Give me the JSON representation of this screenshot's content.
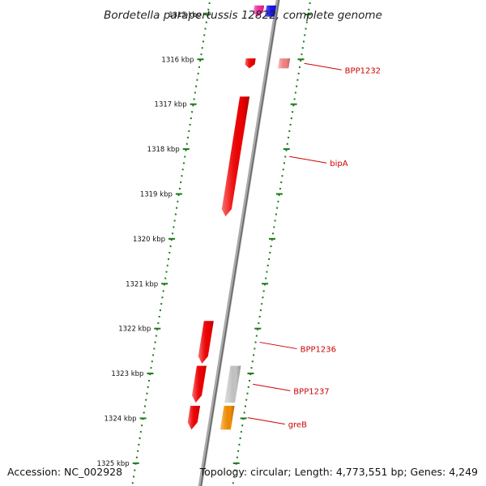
{
  "title": "Bordetella parapertussis 12822, complete genome",
  "footer": {
    "accession": "Accession: NC_002928",
    "summary": "Topology: circular; Length: 4,773,551 bp; Genes: 4,249"
  },
  "colors": {
    "backbone": "#888888",
    "tick": "#1a7a1a",
    "label": "#cc0000",
    "red": "#ee0000",
    "pink": "#ee2a9a",
    "blue": "#1515ee",
    "salmon": "#f08080",
    "gray": "#c4c4c4",
    "orange": "#f08c00"
  },
  "scale": {
    "start_kbp": 1314.84,
    "end_kbp": 1325.48,
    "ticks": [
      {
        "kbp": 1315,
        "label": "1315 kbp"
      },
      {
        "kbp": 1316,
        "label": "1316 kbp"
      },
      {
        "kbp": 1317,
        "label": "1317 kbp"
      },
      {
        "kbp": 1318,
        "label": "1318 kbp"
      },
      {
        "kbp": 1319,
        "label": "1319 kbp"
      },
      {
        "kbp": 1320,
        "label": "1320 kbp"
      },
      {
        "kbp": 1321,
        "label": "1321 kbp"
      },
      {
        "kbp": 1322,
        "label": "1322 kbp"
      },
      {
        "kbp": 1323,
        "label": "1323 kbp"
      },
      {
        "kbp": 1324,
        "label": "1324 kbp"
      },
      {
        "kbp": 1325,
        "label": "1325 kbp"
      }
    ]
  },
  "genes": [
    {
      "id": "g1",
      "start_kbp": 1314.8,
      "end_kbp": 1315.05,
      "strand": "-",
      "lane": 1,
      "color": "pink"
    },
    {
      "id": "g2",
      "start_kbp": 1314.8,
      "end_kbp": 1315.05,
      "strand": "+",
      "lane": 1,
      "color": "blue"
    },
    {
      "id": "BPP1231",
      "start_kbp": 1315.98,
      "end_kbp": 1316.2,
      "strand": "-",
      "lane": 1,
      "color": "red"
    },
    {
      "id": "BPP1232",
      "start_kbp": 1315.98,
      "end_kbp": 1316.2,
      "strand": "+",
      "lane": 2,
      "color": "salmon",
      "label": "BPP1232"
    },
    {
      "id": "bipA",
      "start_kbp": 1316.83,
      "end_kbp": 1319.5,
      "strand": "-",
      "lane": 1,
      "color": "red",
      "label": "bipA"
    },
    {
      "id": "BPP1236",
      "start_kbp": 1321.83,
      "end_kbp": 1322.78,
      "strand": "-",
      "lane": 1,
      "color": "red",
      "label": "BPP1236"
    },
    {
      "id": "BPP1237a",
      "start_kbp": 1322.83,
      "end_kbp": 1323.65,
      "strand": "-",
      "lane": 1,
      "color": "red"
    },
    {
      "id": "BPP1237",
      "start_kbp": 1322.83,
      "end_kbp": 1323.65,
      "strand": "+",
      "lane": 2,
      "color": "gray",
      "label": "BPP1237"
    },
    {
      "id": "g9",
      "start_kbp": 1323.72,
      "end_kbp": 1324.25,
      "strand": "-",
      "lane": 1,
      "color": "red"
    },
    {
      "id": "greB",
      "start_kbp": 1323.72,
      "end_kbp": 1324.25,
      "strand": "+",
      "lane": 2,
      "color": "orange",
      "label": "greB"
    }
  ]
}
